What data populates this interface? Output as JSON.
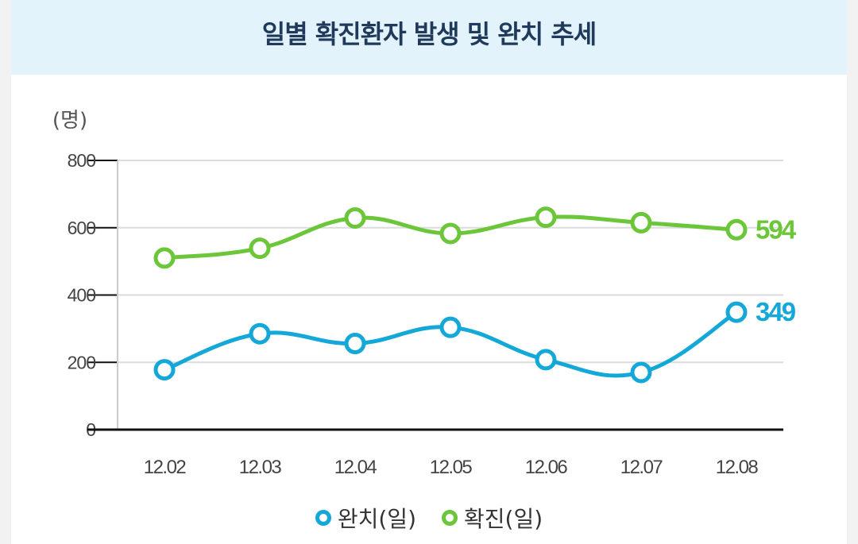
{
  "title": "일별 확진환자 발생 및 완치 추세",
  "colors": {
    "recovered": "#14a8d8",
    "confirmed": "#6cc63a",
    "grid": "#dcdcdc",
    "axis": "#111111",
    "tick_text": "#444444"
  },
  "chart_data": {
    "type": "line",
    "unit_label": "(명)",
    "categories": [
      "12.02",
      "12.03",
      "12.04",
      "12.05",
      "12.06",
      "12.07",
      "12.08"
    ],
    "ylim": [
      0,
      800
    ],
    "yticks": [
      "0",
      "200",
      "400",
      "600",
      "800"
    ],
    "grid": true,
    "series": [
      {
        "name": "완치(일)",
        "color": "#14a8d8",
        "values": [
          178,
          285,
          256,
          304,
          208,
          170,
          349
        ],
        "end_label": "349"
      },
      {
        "name": "확진(일)",
        "color": "#6cc63a",
        "values": [
          510,
          539,
          629,
          583,
          631,
          615,
          594
        ],
        "end_label": "594"
      }
    ],
    "legend_position": "bottom"
  }
}
